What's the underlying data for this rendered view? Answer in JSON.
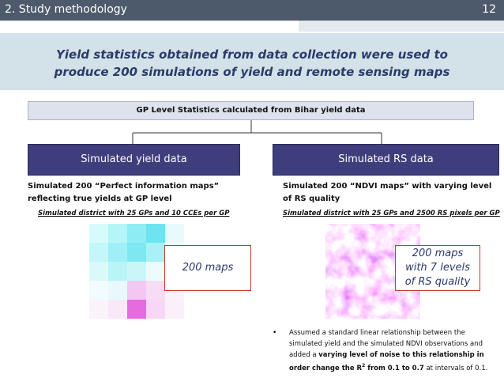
{
  "header": {
    "title": "2. Study methodology",
    "page_number": "12"
  },
  "banner": {
    "lines": [
      "Yield statistics obtained from data collection were used to",
      "produce 200 simulations of yield and remote sensing maps"
    ]
  },
  "source_box": {
    "label": "GP Level Statistics  calculated from Bihar yield data"
  },
  "branches": [
    {
      "title": "Simulated yield data",
      "description": "Simulated  200 “Perfect information maps” reflecting true yields at GP level",
      "map_caption": "Simulated district with 25 GPs and 10 CCEs per GP",
      "callout": "200 maps"
    },
    {
      "title": "Simulated RS data",
      "description": "Simulated  200 “NDVI maps”  with varying level of RS quality",
      "map_caption": "Simulated district with 25 GPs and 2500 RS pixels per GP",
      "callout": "200 maps with 7 levels of RS quality"
    }
  ],
  "bullet": {
    "parts": [
      "Assumed a standard linear relationship between the simulated yield and the simulated NDVI observations and added a ",
      "varying level of noise to this relationship in order change the R",
      "2",
      " from 0.1 to 0.7",
      " at intervals of 0.1."
    ]
  }
}
